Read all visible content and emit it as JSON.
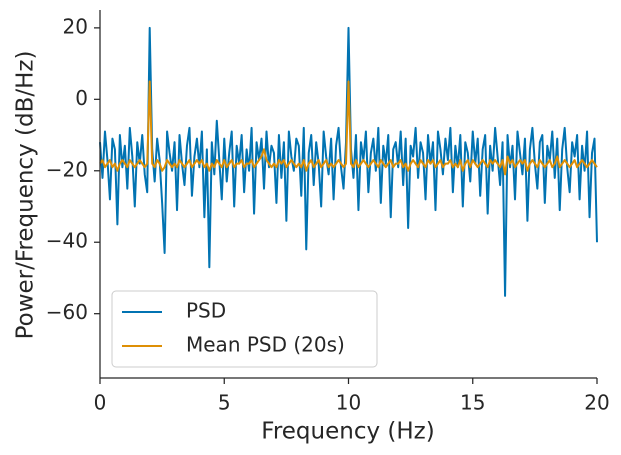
{
  "chart_data": {
    "type": "line",
    "xlabel": "Frequency (Hz)",
    "ylabel": "Power/Frequency (dB/Hz)",
    "xlim": [
      0,
      20
    ],
    "xticks": [
      0,
      5,
      10,
      15,
      20
    ],
    "ylim": [
      -78,
      25
    ],
    "yticks": [
      {
        "value": -60,
        "label": "−60"
      },
      {
        "value": -40,
        "label": "−40"
      },
      {
        "value": -20,
        "label": "−20"
      },
      0,
      20
    ],
    "legend": "lower left",
    "grid": false,
    "x": [
      0,
      0.1,
      0.2,
      0.3,
      0.4,
      0.5,
      0.6,
      0.7,
      0.8,
      0.9,
      1,
      1.1,
      1.2,
      1.3,
      1.4,
      1.5,
      1.6,
      1.7,
      1.8,
      1.9,
      2,
      2.1,
      2.2,
      2.3,
      2.4,
      2.5,
      2.6,
      2.7,
      2.8,
      2.9,
      3,
      3.1,
      3.2,
      3.3,
      3.4,
      3.5,
      3.6,
      3.7,
      3.8,
      3.9,
      4,
      4.1,
      4.2,
      4.3,
      4.4,
      4.5,
      4.6,
      4.7,
      4.8,
      4.9,
      5,
      5.1,
      5.2,
      5.3,
      5.4,
      5.5,
      5.6,
      5.7,
      5.8,
      5.9,
      6,
      6.1,
      6.2,
      6.3,
      6.4,
      6.5,
      6.6,
      6.7,
      6.8,
      6.9,
      7,
      7.1,
      7.2,
      7.3,
      7.4,
      7.5,
      7.6,
      7.7,
      7.8,
      7.9,
      8,
      8.1,
      8.2,
      8.3,
      8.4,
      8.5,
      8.6,
      8.7,
      8.8,
      8.9,
      9,
      9.1,
      9.2,
      9.3,
      9.4,
      9.5,
      9.6,
      9.7,
      9.8,
      9.9,
      10,
      10.1,
      10.2,
      10.3,
      10.4,
      10.5,
      10.6,
      10.7,
      10.8,
      10.9,
      11,
      11.1,
      11.2,
      11.3,
      11.4,
      11.5,
      11.6,
      11.7,
      11.8,
      11.9,
      12,
      12.1,
      12.2,
      12.3,
      12.4,
      12.5,
      12.6,
      12.7,
      12.8,
      12.9,
      13,
      13.1,
      13.2,
      13.3,
      13.4,
      13.5,
      13.6,
      13.7,
      13.8,
      13.9,
      14,
      14.1,
      14.2,
      14.3,
      14.4,
      14.5,
      14.6,
      14.7,
      14.8,
      14.9,
      15,
      15.1,
      15.2,
      15.3,
      15.4,
      15.5,
      15.6,
      15.7,
      15.8,
      15.9,
      16,
      16.1,
      16.2,
      16.3,
      16.4,
      16.5,
      16.6,
      16.7,
      16.8,
      16.9,
      17,
      17.1,
      17.2,
      17.3,
      17.4,
      17.5,
      17.6,
      17.7,
      17.8,
      17.9,
      18,
      18.1,
      18.2,
      18.3,
      18.4,
      18.5,
      18.6,
      18.7,
      18.8,
      18.9,
      19,
      19.1,
      19.2,
      19.3,
      19.4,
      19.5,
      19.6,
      19.7,
      19.8,
      19.9,
      20
    ],
    "series": [
      {
        "name": "PSD",
        "color": "#0173b2",
        "values": [
          -12,
          -22,
          -9,
          -17,
          -28,
          -11,
          -14,
          -35,
          -10,
          -19,
          -13,
          -25,
          -8,
          -16,
          -30,
          -12,
          -18,
          -10,
          -21,
          -26,
          20,
          -14,
          -23,
          -11,
          -17,
          -29,
          -43,
          -9,
          -15,
          -20,
          -12,
          -31,
          -10,
          -18,
          -24,
          -13,
          -8,
          -27,
          -16,
          -11,
          -19,
          -9,
          -33,
          -14,
          -47,
          -12,
          -21,
          -6,
          -17,
          -28,
          -11,
          -23,
          -15,
          -9,
          -30,
          -13,
          -18,
          -10,
          -26,
          -14,
          -20,
          -8,
          -32,
          -12,
          -17,
          -11,
          -25,
          -9,
          -19,
          -13,
          -15,
          -29,
          -10,
          -22,
          -12,
          -34,
          -9,
          -16,
          -20,
          -11,
          -13,
          -27,
          -8,
          -42,
          -15,
          -10,
          -24,
          -12,
          -18,
          -30,
          -9,
          -16,
          -21,
          -11,
          -28,
          -13,
          -8,
          -19,
          -25,
          -12,
          20,
          -14,
          -22,
          -10,
          -31,
          -12,
          -17,
          -9,
          -26,
          -15,
          -11,
          -20,
          -8,
          -29,
          -13,
          -18,
          -10,
          -33,
          -14,
          -12,
          -19,
          -9,
          -24,
          -11,
          -36,
          -13,
          -16,
          -8,
          -22,
          -12,
          -15,
          -28,
          -10,
          -18,
          -12,
          -31,
          -9,
          -14,
          -21,
          -11,
          -17,
          -8,
          -26,
          -13,
          -19,
          -10,
          -30,
          -12,
          -15,
          -23,
          -9,
          -18,
          -11,
          -27,
          -14,
          -10,
          -32,
          -13,
          -20,
          -8,
          -16,
          -24,
          -12,
          -55,
          -10,
          -19,
          -13,
          -28,
          -9,
          -15,
          -21,
          -11,
          -34,
          -14,
          -8,
          -18,
          -25,
          -12,
          -10,
          -29,
          -13,
          -17,
          -9,
          -22,
          -11,
          -31,
          -14,
          -8,
          -19,
          -26,
          -12,
          -16,
          -10,
          -28,
          -13,
          -20,
          -9,
          -33,
          -15,
          -11,
          -40
        ]
      },
      {
        "name": "Mean PSD (20s)",
        "color": "#de8f05",
        "values": [
          -18,
          -17,
          -19,
          -18,
          -17,
          -19,
          -18,
          -20,
          -18,
          -17,
          -18,
          -19,
          -17,
          -18,
          -19,
          -18,
          -17,
          -18,
          -19,
          -18,
          5,
          -18,
          -19,
          -17,
          -18,
          -20,
          -19,
          -17,
          -18,
          -19,
          -18,
          -19,
          -17,
          -18,
          -19,
          -18,
          -17,
          -19,
          -18,
          -17,
          -18,
          -17,
          -19,
          -18,
          -20,
          -18,
          -19,
          -17,
          -18,
          -19,
          -17,
          -19,
          -18,
          -17,
          -19,
          -18,
          -18,
          -17,
          -19,
          -18,
          -18,
          -17,
          -19,
          -18,
          -17,
          -16,
          -14,
          -17,
          -18,
          -19,
          -18,
          -19,
          -17,
          -18,
          -17,
          -19,
          -18,
          -17,
          -18,
          -19,
          -18,
          -19,
          -17,
          -20,
          -18,
          -17,
          -19,
          -18,
          -17,
          -19,
          -18,
          -17,
          -19,
          -18,
          -19,
          -18,
          -17,
          -18,
          -19,
          -18,
          5,
          -18,
          -19,
          -17,
          -19,
          -18,
          -17,
          -18,
          -19,
          -18,
          -17,
          -18,
          -19,
          -17,
          -18,
          -19,
          -18,
          -17,
          -19,
          -18,
          -18,
          -17,
          -19,
          -18,
          -20,
          -18,
          -17,
          -18,
          -19,
          -17,
          -18,
          -19,
          -17,
          -18,
          -17,
          -19,
          -18,
          -17,
          -19,
          -18,
          -18,
          -17,
          -19,
          -18,
          -19,
          -17,
          -20,
          -18,
          -17,
          -19,
          -17,
          -18,
          -19,
          -18,
          -17,
          -18,
          -19,
          -17,
          -18,
          -17,
          -18,
          -19,
          -17,
          -21,
          -16,
          -18,
          -17,
          -19,
          -18,
          -17,
          -18,
          -17,
          -20,
          -18,
          -17,
          -18,
          -19,
          -17,
          -18,
          -19,
          -18,
          -17,
          -19,
          -18,
          -16,
          -19,
          -18,
          -17,
          -18,
          -19,
          -18,
          -17,
          -19,
          -18,
          -17,
          -18,
          -19,
          -18,
          -17,
          -18,
          -19
        ]
      }
    ]
  }
}
